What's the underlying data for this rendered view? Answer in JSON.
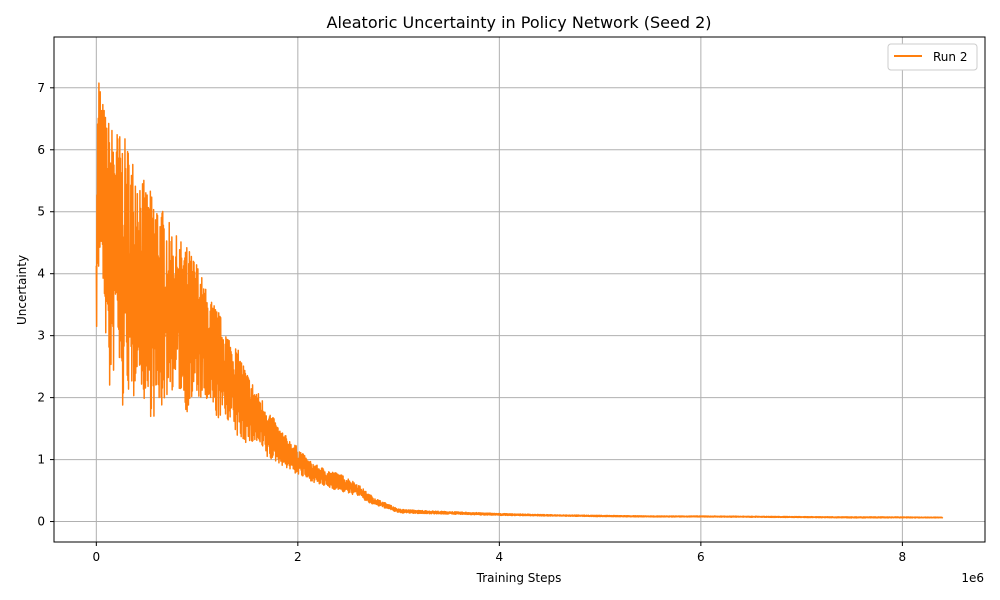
{
  "chart_data": {
    "type": "line",
    "title": "Aleatoric Uncertainty in Policy Network (Seed 2)",
    "xlabel": "Training Steps",
    "ylabel": "Uncertainty",
    "x_offset_label": "1e6",
    "xlim": [
      -0.42,
      8.82
    ],
    "ylim": [
      -0.33,
      7.82
    ],
    "x_scale_factor": 1000000,
    "xticks": [
      0,
      2,
      4,
      6,
      8
    ],
    "xtick_labels": [
      "0",
      "2",
      "4",
      "6",
      "8"
    ],
    "yticks": [
      0,
      1,
      2,
      3,
      4,
      5,
      6,
      7
    ],
    "ytick_labels": [
      "0",
      "1",
      "2",
      "3",
      "4",
      "5",
      "6",
      "7"
    ],
    "grid": true,
    "legend_position": "top-right",
    "series": [
      {
        "name": "Run 2",
        "color": "#ff7f0e",
        "x": [
          0.0,
          0.02,
          0.05,
          0.1,
          0.15,
          0.2,
          0.25,
          0.3,
          0.35,
          0.4,
          0.5,
          0.6,
          0.7,
          0.8,
          0.9,
          1.0,
          1.1,
          1.2,
          1.3,
          1.4,
          1.5,
          1.6,
          1.7,
          1.8,
          1.9,
          2.0,
          2.1,
          2.2,
          2.3,
          2.4,
          2.5,
          2.6,
          2.7,
          2.8,
          2.9,
          3.0,
          3.2,
          3.5,
          4.0,
          4.5,
          5.0,
          5.5,
          6.0,
          6.5,
          7.0,
          7.5,
          8.0,
          8.4
        ],
        "upper": [
          5.3,
          7.45,
          6.9,
          6.55,
          6.45,
          6.35,
          6.25,
          6.15,
          5.95,
          5.8,
          5.4,
          5.25,
          4.9,
          4.6,
          4.45,
          4.2,
          3.7,
          3.45,
          3.05,
          2.8,
          2.4,
          2.1,
          1.85,
          1.55,
          1.35,
          1.2,
          1.0,
          0.9,
          0.83,
          0.78,
          0.7,
          0.6,
          0.45,
          0.35,
          0.28,
          0.2,
          0.18,
          0.16,
          0.13,
          0.11,
          0.1,
          0.09,
          0.09,
          0.085,
          0.08,
          0.075,
          0.075,
          0.07
        ],
        "lower": [
          2.95,
          3.8,
          4.3,
          2.75,
          1.65,
          3.3,
          1.5,
          2.4,
          1.45,
          2.5,
          1.75,
          1.6,
          2.0,
          2.2,
          1.75,
          2.0,
          1.85,
          1.65,
          1.65,
          1.35,
          1.25,
          1.25,
          1.0,
          0.95,
          0.85,
          0.75,
          0.68,
          0.6,
          0.55,
          0.5,
          0.45,
          0.42,
          0.3,
          0.25,
          0.2,
          0.14,
          0.13,
          0.12,
          0.1,
          0.09,
          0.08,
          0.075,
          0.075,
          0.07,
          0.065,
          0.06,
          0.06,
          0.06
        ]
      }
    ]
  }
}
